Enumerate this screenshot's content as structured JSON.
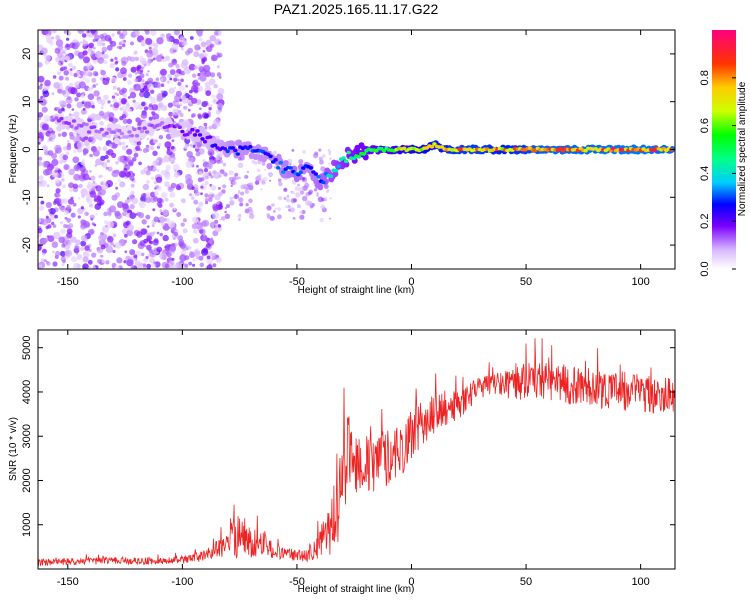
{
  "title": "PAZ1.2025.165.11.17.G22",
  "chart_data": [
    {
      "type": "heatmap",
      "xlabel": "Height of straight line (km)",
      "ylabel": "Frequency (Hz)",
      "xlim": [
        -163,
        115
      ],
      "ylim": [
        -25,
        25
      ],
      "x_ticks": [
        "-150",
        "-100",
        "-50",
        "0",
        "50",
        "100"
      ],
      "y_ticks": [
        "-20",
        "-10",
        "0",
        "10",
        "20"
      ],
      "colorbar": {
        "label": "Normalized spectral amplitude",
        "range": [
          0,
          1
        ],
        "ticks": [
          "0.0",
          "0.2",
          "0.4",
          "0.6",
          "0.8"
        ],
        "colormap": "rainbow"
      },
      "ridge": {
        "x": [
          -155,
          -140,
          -125,
          -110,
          -100,
          -92,
          -85,
          -78,
          -70,
          -62,
          -55,
          -50,
          -45,
          -40,
          -35,
          -30,
          -25,
          -18,
          -10,
          -5,
          0,
          5,
          10,
          15,
          20,
          30,
          40,
          50,
          60,
          70,
          80,
          90,
          100,
          110,
          114
        ],
        "freq": [
          6,
          4,
          3,
          5,
          4,
          3,
          1,
          0,
          0,
          -2,
          -4,
          -5,
          -4,
          -7,
          -5,
          -2,
          -1,
          0,
          0,
          0,
          0,
          0,
          1,
          0,
          0,
          0,
          0,
          0,
          0,
          0,
          0,
          0,
          0,
          0,
          0
        ],
        "amplitude": [
          0.15,
          0.15,
          0.12,
          0.15,
          0.18,
          0.22,
          0.25,
          0.3,
          0.3,
          0.3,
          0.32,
          0.35,
          0.3,
          0.35,
          0.4,
          0.45,
          0.5,
          0.55,
          0.6,
          0.7,
          0.7,
          0.75,
          0.8,
          0.8,
          0.85,
          0.85,
          0.8,
          0.85,
          0.9,
          0.9,
          0.9,
          0.92,
          0.92,
          0.9,
          0.9
        ]
      }
    },
    {
      "type": "line",
      "xlabel": "Height of straight line (km)",
      "ylabel": "SNR (10 * v/v)",
      "xlim": [
        -163,
        115
      ],
      "ylim": [
        0,
        5400
      ],
      "x_ticks": [
        "-150",
        "-100",
        "-50",
        "0",
        "50",
        "100"
      ],
      "y_ticks": [
        "1000",
        "2000",
        "3000",
        "4000",
        "5000"
      ],
      "color": "#ee2222",
      "series": [
        {
          "x": [
            -163,
            -150,
            -140,
            -130,
            -120,
            -110,
            -100,
            -95,
            -90,
            -85,
            -80,
            -77,
            -74,
            -70,
            -65,
            -60,
            -55,
            -50,
            -45,
            -42,
            -38,
            -35,
            -32,
            -30,
            -28,
            -25,
            -22,
            -18,
            -15,
            -12,
            -8,
            -5,
            -2,
            0,
            5,
            10,
            15,
            20,
            25,
            30,
            35,
            40,
            45,
            50,
            55,
            60,
            65,
            70,
            75,
            80,
            85,
            90,
            95,
            100,
            105,
            110,
            115
          ],
          "y": [
            150,
            160,
            180,
            200,
            180,
            170,
            200,
            250,
            300,
            450,
            600,
            900,
            750,
            600,
            550,
            400,
            350,
            300,
            350,
            450,
            700,
            1000,
            1500,
            2300,
            2500,
            2500,
            2400,
            2300,
            2400,
            2500,
            2600,
            2700,
            2800,
            3000,
            3300,
            3500,
            3600,
            3700,
            3900,
            4100,
            4200,
            4200,
            4200,
            4300,
            4300,
            4250,
            4200,
            4150,
            4150,
            4100,
            4050,
            4050,
            4000,
            4000,
            3950,
            3950,
            3950
          ],
          "noise": [
            80,
            80,
            80,
            80,
            80,
            80,
            90,
            100,
            130,
            200,
            350,
            700,
            500,
            350,
            300,
            180,
            150,
            130,
            180,
            250,
            450,
            700,
            900,
            900,
            1000,
            800,
            700,
            700,
            700,
            700,
            600,
            600,
            600,
            600,
            500,
            450,
            400,
            350,
            300,
            250,
            250,
            300,
            400,
            450,
            450,
            450,
            450,
            450,
            450,
            450,
            450,
            450,
            450,
            450,
            450,
            400,
            400
          ]
        }
      ]
    }
  ]
}
